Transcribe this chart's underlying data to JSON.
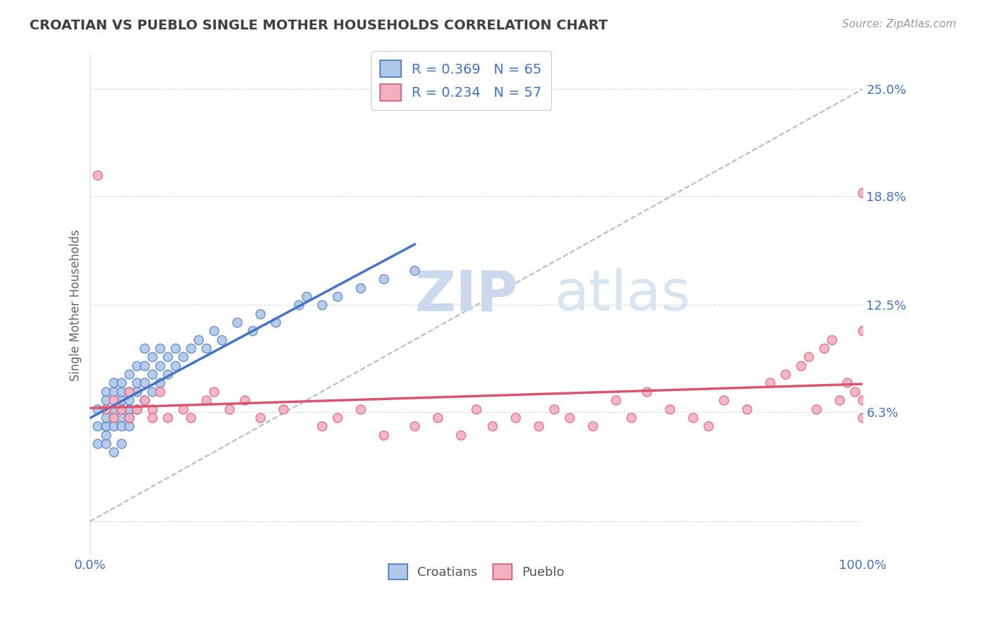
{
  "title": "CROATIAN VS PUEBLO SINGLE MOTHER HOUSEHOLDS CORRELATION CHART",
  "source": "Source: ZipAtlas.com",
  "ylabel": "Single Mother Households",
  "croatian_R": 0.369,
  "croatian_N": 65,
  "pueblo_R": 0.234,
  "pueblo_N": 57,
  "croatian_color": "#adc8e8",
  "pueblo_color": "#f4afc0",
  "croatian_line_color": "#4472c4",
  "pueblo_line_color": "#d9546e",
  "ref_line_color": "#b0bcc8",
  "background_color": "#ffffff",
  "grid_color": "#cccccc",
  "title_color": "#404040",
  "tick_color": "#4472c4",
  "watermark_color": "#dce8f4",
  "legend_labels": [
    "Croatians",
    "Pueblo"
  ],
  "ytick_vals": [
    0.0,
    0.063,
    0.125,
    0.188,
    0.25
  ],
  "ytick_labels": [
    "",
    "6.3%",
    "12.5%",
    "18.8%",
    "25.0%"
  ],
  "xlim": [
    0.0,
    1.0
  ],
  "ylim": [
    -0.02,
    0.27
  ],
  "croatian_x": [
    0.01,
    0.01,
    0.01,
    0.02,
    0.02,
    0.02,
    0.02,
    0.02,
    0.02,
    0.02,
    0.02,
    0.03,
    0.03,
    0.03,
    0.03,
    0.03,
    0.03,
    0.04,
    0.04,
    0.04,
    0.04,
    0.04,
    0.04,
    0.04,
    0.05,
    0.05,
    0.05,
    0.05,
    0.05,
    0.05,
    0.06,
    0.06,
    0.06,
    0.06,
    0.07,
    0.07,
    0.07,
    0.07,
    0.08,
    0.08,
    0.08,
    0.09,
    0.09,
    0.09,
    0.1,
    0.1,
    0.11,
    0.11,
    0.12,
    0.13,
    0.14,
    0.15,
    0.16,
    0.17,
    0.19,
    0.21,
    0.22,
    0.24,
    0.27,
    0.28,
    0.3,
    0.32,
    0.35,
    0.38,
    0.42
  ],
  "croatian_y": [
    0.065,
    0.055,
    0.045,
    0.065,
    0.055,
    0.075,
    0.045,
    0.055,
    0.06,
    0.07,
    0.05,
    0.06,
    0.065,
    0.055,
    0.075,
    0.08,
    0.04,
    0.065,
    0.07,
    0.06,
    0.075,
    0.08,
    0.045,
    0.055,
    0.065,
    0.075,
    0.085,
    0.055,
    0.07,
    0.06,
    0.065,
    0.075,
    0.08,
    0.09,
    0.07,
    0.08,
    0.09,
    0.1,
    0.075,
    0.085,
    0.095,
    0.08,
    0.09,
    0.1,
    0.085,
    0.095,
    0.09,
    0.1,
    0.095,
    0.1,
    0.105,
    0.1,
    0.11,
    0.105,
    0.115,
    0.11,
    0.12,
    0.115,
    0.125,
    0.13,
    0.125,
    0.13,
    0.135,
    0.14,
    0.145
  ],
  "pueblo_x": [
    0.01,
    0.02,
    0.03,
    0.03,
    0.04,
    0.05,
    0.05,
    0.06,
    0.07,
    0.08,
    0.08,
    0.09,
    0.1,
    0.12,
    0.13,
    0.15,
    0.16,
    0.18,
    0.2,
    0.22,
    0.25,
    0.3,
    0.32,
    0.35,
    0.38,
    0.42,
    0.45,
    0.48,
    0.5,
    0.52,
    0.55,
    0.58,
    0.6,
    0.62,
    0.65,
    0.68,
    0.7,
    0.72,
    0.75,
    0.78,
    0.8,
    0.82,
    0.85,
    0.88,
    0.9,
    0.92,
    0.93,
    0.94,
    0.95,
    0.96,
    0.97,
    0.98,
    0.99,
    1.0,
    1.0,
    1.0,
    1.0
  ],
  "pueblo_y": [
    0.2,
    0.065,
    0.06,
    0.07,
    0.065,
    0.075,
    0.06,
    0.065,
    0.07,
    0.065,
    0.06,
    0.075,
    0.06,
    0.065,
    0.06,
    0.07,
    0.075,
    0.065,
    0.07,
    0.06,
    0.065,
    0.055,
    0.06,
    0.065,
    0.05,
    0.055,
    0.06,
    0.05,
    0.065,
    0.055,
    0.06,
    0.055,
    0.065,
    0.06,
    0.055,
    0.07,
    0.06,
    0.075,
    0.065,
    0.06,
    0.055,
    0.07,
    0.065,
    0.08,
    0.085,
    0.09,
    0.095,
    0.065,
    0.1,
    0.105,
    0.07,
    0.08,
    0.075,
    0.11,
    0.19,
    0.07,
    0.06
  ]
}
